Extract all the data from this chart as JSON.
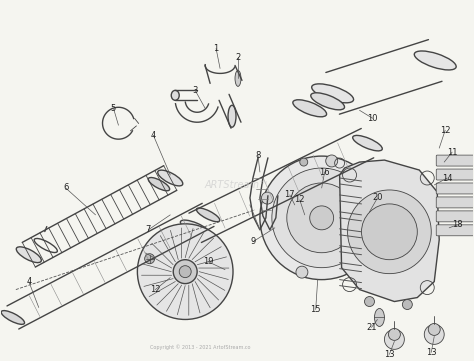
{
  "bg_color": "#f5f5f0",
  "line_color": "#444444",
  "label_color": "#222222",
  "lw_thin": 0.6,
  "lw_med": 1.0,
  "lw_thick": 1.4
}
